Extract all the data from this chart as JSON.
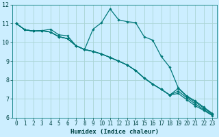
{
  "xlabel": "Humidex (Indice chaleur)",
  "xlim": [
    -0.5,
    23.5
  ],
  "ylim": [
    6,
    12
  ],
  "yticks": [
    6,
    7,
    8,
    9,
    10,
    11,
    12
  ],
  "xticks": [
    0,
    1,
    2,
    3,
    4,
    5,
    6,
    7,
    8,
    9,
    10,
    11,
    12,
    13,
    14,
    15,
    16,
    17,
    18,
    19,
    20,
    21,
    22,
    23
  ],
  "bg_color": "#cceeff",
  "grid_color": "#aad4d4",
  "line_color": "#007878",
  "x": [
    0,
    1,
    2,
    3,
    4,
    5,
    6,
    7,
    8,
    9,
    10,
    11,
    12,
    13,
    14,
    15,
    16,
    17,
    18,
    19,
    20,
    21,
    22,
    23
  ],
  "series1": [
    11.0,
    10.67,
    10.6,
    10.62,
    10.7,
    10.4,
    10.35,
    9.82,
    9.62,
    10.7,
    11.05,
    11.78,
    11.2,
    11.1,
    11.05,
    10.3,
    10.12,
    9.25,
    8.68,
    7.58,
    7.15,
    6.88,
    6.55,
    6.22
  ],
  "series2": [
    11.0,
    10.67,
    10.6,
    10.62,
    10.55,
    10.3,
    10.2,
    9.82,
    9.62,
    9.52,
    9.38,
    9.2,
    9.0,
    8.8,
    8.5,
    8.1,
    7.78,
    7.5,
    7.2,
    7.55,
    7.12,
    6.82,
    6.5,
    6.2
  ],
  "series3": [
    11.0,
    10.67,
    10.6,
    10.62,
    10.55,
    10.3,
    10.2,
    9.82,
    9.62,
    9.52,
    9.38,
    9.2,
    9.0,
    8.8,
    8.5,
    8.1,
    7.78,
    7.5,
    7.2,
    7.4,
    7.05,
    6.72,
    6.42,
    6.15
  ],
  "series4": [
    11.0,
    10.67,
    10.6,
    10.62,
    10.55,
    10.3,
    10.2,
    9.82,
    9.62,
    9.52,
    9.38,
    9.2,
    9.0,
    8.8,
    8.5,
    8.1,
    7.78,
    7.5,
    7.2,
    7.28,
    6.95,
    6.62,
    6.38,
    6.1
  ]
}
